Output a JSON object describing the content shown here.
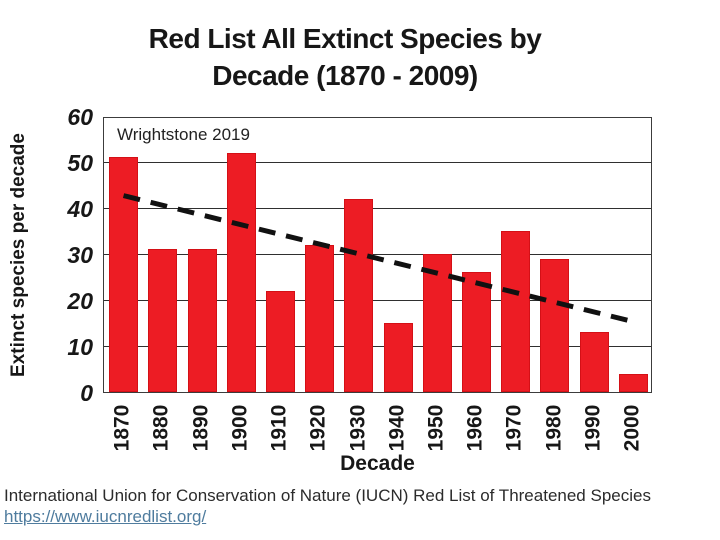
{
  "title": {
    "line1": "Red List All Extinct Species by",
    "line2": "Decade (1870 - 2009)"
  },
  "chart_data": {
    "type": "bar",
    "title": "Red List All Extinct Species by Decade (1870 - 2009)",
    "categories": [
      "1870",
      "1880",
      "1890",
      "1900",
      "1910",
      "1920",
      "1930",
      "1940",
      "1950",
      "1960",
      "1970",
      "1980",
      "1990",
      "2000"
    ],
    "values": [
      51,
      31,
      31,
      52,
      22,
      32,
      42,
      15,
      30,
      26,
      35,
      29,
      13,
      4
    ],
    "xlabel": "Decade",
    "ylabel": "Extinct species per decade",
    "ylim": [
      0,
      60
    ],
    "yticks": [
      0,
      10,
      20,
      30,
      40,
      50,
      60
    ],
    "grid": "horizontal",
    "legend": "none",
    "annotation": "Wrightstone 2019",
    "bar_color": "#ED1C24",
    "trend_line": {
      "style": "dashed",
      "color": "#111111",
      "start_category": "1870",
      "start_value": 43,
      "end_category": "2000",
      "end_value": 15.5
    }
  },
  "footer": {
    "source_text": "International Union for Conservation of Nature (IUCN) Red List of Threatened Species",
    "link_text": "https://www.iucnredlist.org/",
    "link_color": "#4f7c9e"
  }
}
